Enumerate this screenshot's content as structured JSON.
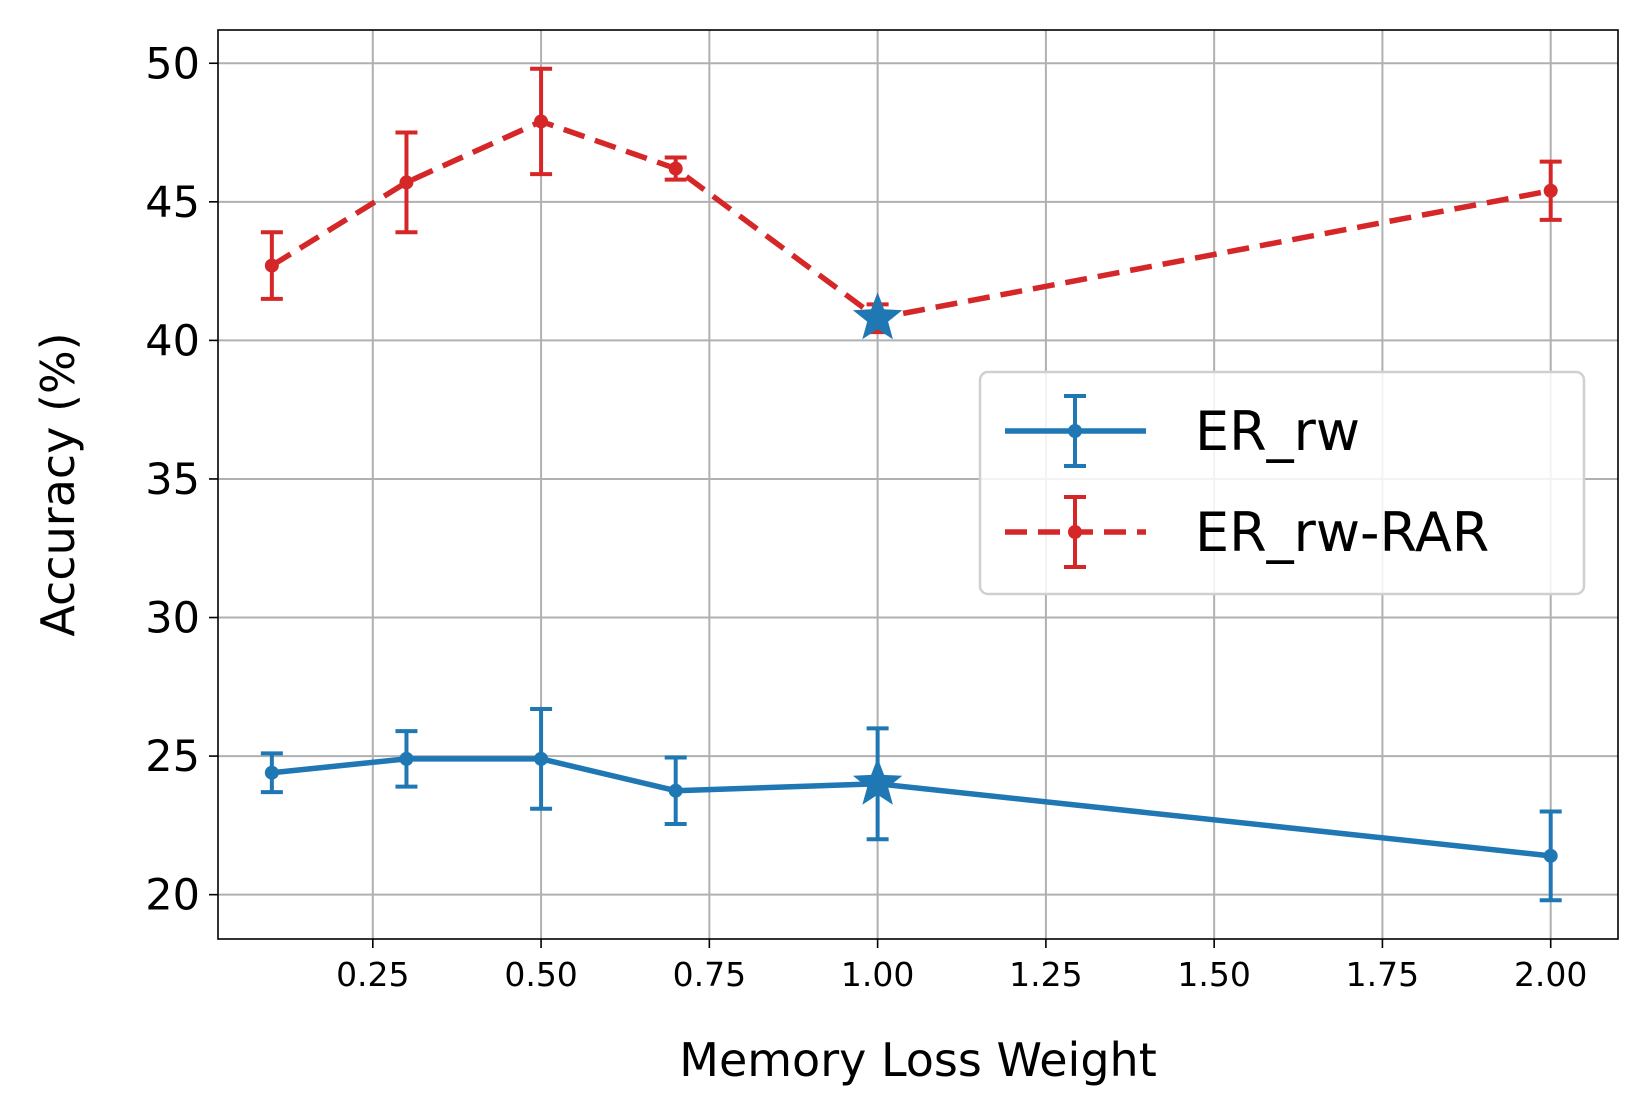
{
  "chart_data": {
    "type": "line",
    "xlabel": "Memory Loss Weight",
    "ylabel": "Accuracy (%)",
    "xlim": [
      0.02,
      2.1
    ],
    "ylim": [
      18.4,
      51.2
    ],
    "x_ticks": [
      0.25,
      0.5,
      0.75,
      1.0,
      1.25,
      1.5,
      1.75,
      2.0
    ],
    "x_tick_labels": [
      "0.25",
      "0.50",
      "0.75",
      "1.00",
      "1.25",
      "1.50",
      "1.75",
      "2.00"
    ],
    "y_ticks": [
      20,
      25,
      30,
      35,
      40,
      45,
      50
    ],
    "y_tick_labels": [
      "20",
      "25",
      "30",
      "35",
      "40",
      "45",
      "50"
    ],
    "grid": true,
    "legend_position": "center-right",
    "x": [
      0.1,
      0.3,
      0.5,
      0.7,
      1.0,
      2.0
    ],
    "series": [
      {
        "name": "ER_rw",
        "color": "#1f77b4",
        "linestyle": "solid",
        "values": [
          24.4,
          24.9,
          24.9,
          23.75,
          24.0,
          21.4
        ],
        "errors": [
          0.7,
          1.0,
          1.8,
          1.2,
          2.0,
          1.6
        ]
      },
      {
        "name": "ER_rw-RAR",
        "color": "#d62728",
        "linestyle": "dashed",
        "values": [
          42.7,
          45.7,
          47.9,
          46.2,
          40.8,
          45.4
        ],
        "errors": [
          1.2,
          1.8,
          1.9,
          0.4,
          0.5,
          1.05
        ]
      }
    ],
    "highlight": {
      "x": 1.0,
      "marker": "star",
      "color": "#1f77b4",
      "y_values": [
        24.0,
        40.8
      ]
    }
  }
}
